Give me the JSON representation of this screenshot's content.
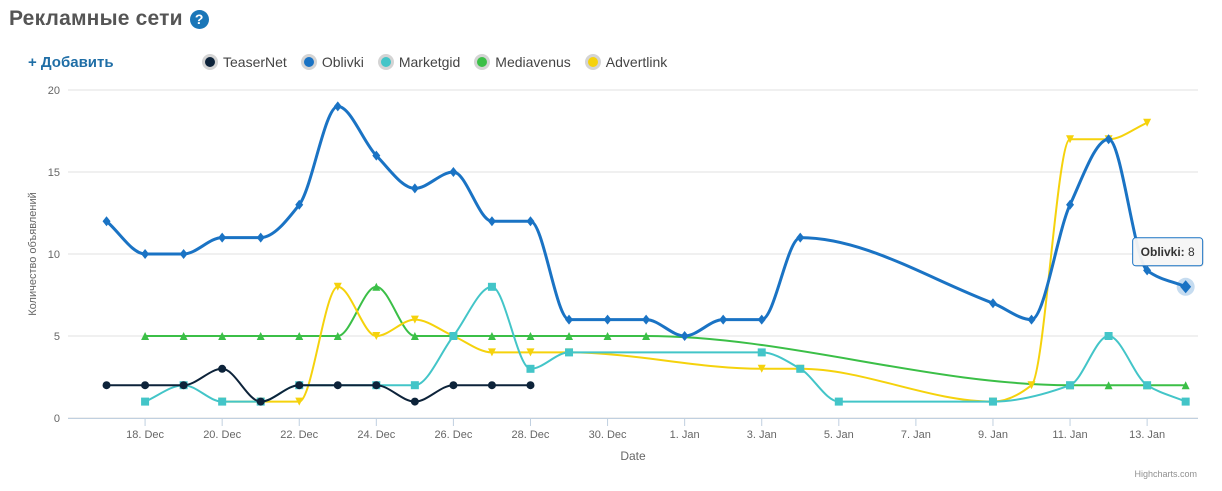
{
  "header": {
    "title": "Рекламные сети",
    "help": "?"
  },
  "toolbar": {
    "add_label": "+ Добавить"
  },
  "credits": "Highcharts.com",
  "chart_data": {
    "type": "line",
    "xlabel": "Date",
    "ylabel": "Количество объявлений",
    "ylim": [
      0,
      20
    ],
    "yticks": [
      0,
      5,
      10,
      15,
      20
    ],
    "xticks": [
      "18. Dec",
      "20. Dec",
      "22. Dec",
      "24. Dec",
      "26. Dec",
      "28. Dec",
      "30. Dec",
      "1. Jan",
      "3. Jan",
      "5. Jan",
      "7. Jan",
      "9. Jan",
      "11. Jan",
      "13. Jan"
    ],
    "grid": "horizontal",
    "legend": "top",
    "x_range": [
      "2014-12-16",
      "2015-01-14"
    ],
    "series": [
      {
        "name": "TeaserNet",
        "color": "#0d233a",
        "marker": "circle",
        "points": [
          [
            "2014-12-17",
            2
          ],
          [
            "2014-12-18",
            2
          ],
          [
            "2014-12-19",
            2
          ],
          [
            "2014-12-20",
            3
          ],
          [
            "2014-12-21",
            1
          ],
          [
            "2014-12-22",
            2
          ],
          [
            "2014-12-23",
            2
          ],
          [
            "2014-12-24",
            2
          ],
          [
            "2014-12-25",
            1
          ],
          [
            "2014-12-26",
            2
          ],
          [
            "2014-12-27",
            2
          ],
          [
            "2014-12-28",
            2
          ]
        ]
      },
      {
        "name": "Oblivki",
        "color": "#1a73c4",
        "marker": "diamond",
        "points": [
          [
            "2014-12-17",
            12
          ],
          [
            "2014-12-18",
            10
          ],
          [
            "2014-12-19",
            10
          ],
          [
            "2014-12-20",
            11
          ],
          [
            "2014-12-21",
            11
          ],
          [
            "2014-12-22",
            13
          ],
          [
            "2014-12-23",
            19
          ],
          [
            "2014-12-24",
            16
          ],
          [
            "2014-12-25",
            14
          ],
          [
            "2014-12-26",
            15
          ],
          [
            "2014-12-27",
            12
          ],
          [
            "2014-12-28",
            12
          ],
          [
            "2014-12-29",
            6
          ],
          [
            "2014-12-30",
            6
          ],
          [
            "2014-12-31",
            6
          ],
          [
            "2015-01-01",
            5
          ],
          [
            "2015-01-02",
            6
          ],
          [
            "2015-01-03",
            6
          ],
          [
            "2015-01-04",
            11
          ],
          [
            "2015-01-09",
            7
          ],
          [
            "2015-01-10",
            6
          ],
          [
            "2015-01-11",
            13
          ],
          [
            "2015-01-12",
            17
          ],
          [
            "2015-01-13",
            9
          ],
          [
            "2015-01-14",
            8
          ]
        ]
      },
      {
        "name": "Marketgid",
        "color": "#43c5c8",
        "marker": "square",
        "points": [
          [
            "2014-12-18",
            1
          ],
          [
            "2014-12-19",
            2
          ],
          [
            "2014-12-20",
            1
          ],
          [
            "2014-12-21",
            1
          ],
          [
            "2014-12-22",
            2
          ],
          [
            "2014-12-24",
            2
          ],
          [
            "2014-12-25",
            2
          ],
          [
            "2014-12-26",
            5
          ],
          [
            "2014-12-27",
            8
          ],
          [
            "2014-12-28",
            3
          ],
          [
            "2014-12-29",
            4
          ],
          [
            "2015-01-03",
            4
          ],
          [
            "2015-01-04",
            3
          ],
          [
            "2015-01-05",
            1
          ],
          [
            "2015-01-09",
            1
          ],
          [
            "2015-01-11",
            2
          ],
          [
            "2015-01-12",
            5
          ],
          [
            "2015-01-13",
            2
          ],
          [
            "2015-01-14",
            1
          ]
        ]
      },
      {
        "name": "Mediavenus",
        "color": "#3bbf47",
        "marker": "triangle",
        "points": [
          [
            "2014-12-18",
            5
          ],
          [
            "2014-12-19",
            5
          ],
          [
            "2014-12-20",
            5
          ],
          [
            "2014-12-21",
            5
          ],
          [
            "2014-12-22",
            5
          ],
          [
            "2014-12-23",
            5
          ],
          [
            "2014-12-24",
            8
          ],
          [
            "2014-12-25",
            5
          ],
          [
            "2014-12-26",
            5
          ],
          [
            "2014-12-27",
            5
          ],
          [
            "2014-12-28",
            5
          ],
          [
            "2014-12-29",
            5
          ],
          [
            "2014-12-30",
            5
          ],
          [
            "2014-12-31",
            5
          ],
          [
            "2015-01-11",
            2
          ],
          [
            "2015-01-12",
            2
          ],
          [
            "2015-01-13",
            2
          ],
          [
            "2015-01-14",
            2
          ]
        ]
      },
      {
        "name": "Advertlink",
        "color": "#f5d20c",
        "marker": "triangle-down",
        "points": [
          [
            "2014-12-20",
            1
          ],
          [
            "2014-12-21",
            1
          ],
          [
            "2014-12-22",
            1
          ],
          [
            "2014-12-23",
            8
          ],
          [
            "2014-12-24",
            5
          ],
          [
            "2014-12-25",
            6
          ],
          [
            "2014-12-26",
            5
          ],
          [
            "2014-12-27",
            4
          ],
          [
            "2014-12-28",
            4
          ],
          [
            "2014-12-29",
            4
          ],
          [
            "2015-01-03",
            3
          ],
          [
            "2015-01-04",
            3
          ],
          [
            "2015-01-09",
            1
          ],
          [
            "2015-01-10",
            2
          ],
          [
            "2015-01-11",
            17
          ],
          [
            "2015-01-12",
            17
          ],
          [
            "2015-01-13",
            18
          ]
        ]
      }
    ],
    "tooltip": {
      "series": "Oblivki:",
      "value": "8"
    }
  }
}
